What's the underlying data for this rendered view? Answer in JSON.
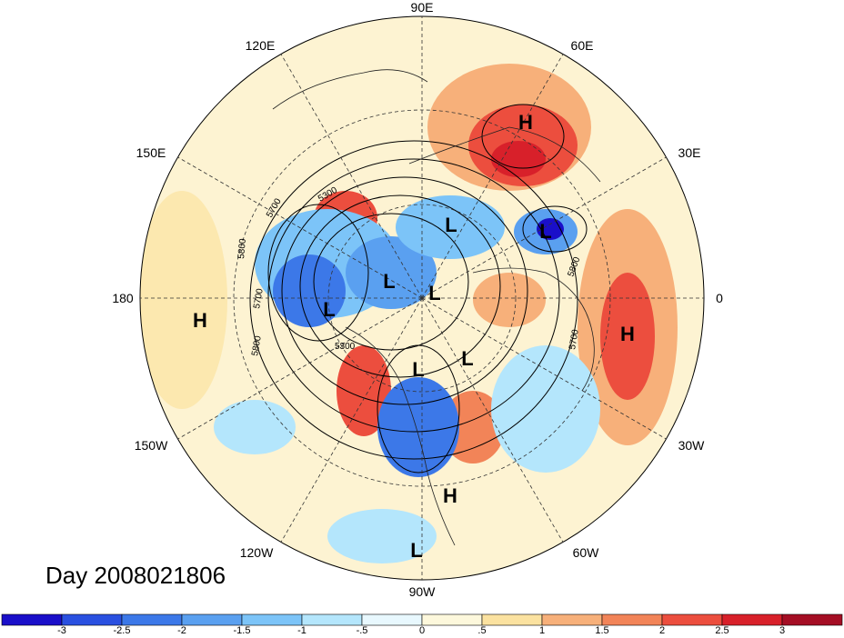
{
  "title": "Day 2008021806",
  "longitude_labels": [
    "90E",
    "60E",
    "30E",
    "0",
    "30W",
    "60W",
    "90W",
    "120W",
    "150W",
    "180",
    "150E",
    "120E"
  ],
  "contour_labels": [
    "5700",
    "5300",
    "5800",
    "5700",
    "5300",
    "5800",
    "5700",
    "5800"
  ],
  "pressure_centers": [
    {
      "type": "H",
      "label": "H"
    },
    {
      "type": "L",
      "label": "L"
    },
    {
      "type": "L",
      "label": "L"
    },
    {
      "type": "L",
      "label": "L"
    },
    {
      "type": "L",
      "label": "L"
    },
    {
      "type": "L",
      "label": "L"
    },
    {
      "type": "L",
      "label": "L"
    },
    {
      "type": "L",
      "label": "L"
    },
    {
      "type": "H",
      "label": "H"
    },
    {
      "type": "H",
      "label": "H"
    },
    {
      "type": "H",
      "label": "H"
    },
    {
      "type": "L",
      "label": "L"
    }
  ],
  "colorbar": {
    "tick_labels": [
      "-3",
      "-2.5",
      "-2",
      "-1.5",
      "-1",
      "-.5",
      "0",
      ".5",
      "1",
      "1.5",
      "2",
      "2.5",
      "3"
    ],
    "colors": [
      "#1a0fc9",
      "#2a50e0",
      "#3c78e8",
      "#5aa0f0",
      "#7cc4f8",
      "#b4e6fc",
      "#e8f8fe",
      "#fdf8dc",
      "#fbe2a0",
      "#f7b07a",
      "#f28458",
      "#ec4e3e",
      "#d8202a",
      "#a40e24"
    ]
  },
  "colors": {
    "ocean_background": "#fdf3d2",
    "warm_anomaly": "#ec4e3e",
    "cold_anomaly": "#3c78e8",
    "contour": "#000000",
    "grid": "#333333"
  }
}
